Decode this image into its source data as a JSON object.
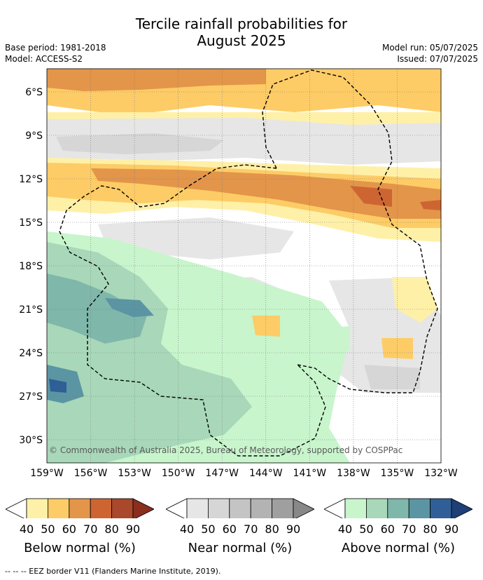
{
  "title_line1": "Tercile rainfall probabilities for",
  "title_line2": "August 2025",
  "base_period": "Base period: 1981-2018",
  "model": "Model: ACCESS-S2",
  "model_run": "Model run: 05/07/2025",
  "issued": "Issued: 07/07/2025",
  "copyright": "© Commonwealth of Australia 2025, Bureau of Meteorology, supported by COSPPac",
  "lat_labels": [
    "6°S",
    "9°S",
    "12°S",
    "15°S",
    "18°S",
    "21°S",
    "24°S",
    "27°S",
    "30°S"
  ],
  "lon_labels": [
    "159°W",
    "156°W",
    "153°W",
    "150°W",
    "147°W",
    "144°W",
    "141°W",
    "138°W",
    "135°W",
    "132°W"
  ],
  "legends": [
    {
      "name": "Below normal (%)",
      "ticks": [
        "40",
        "50",
        "60",
        "70",
        "80",
        "90"
      ],
      "colors": [
        "#fff0a8",
        "#fdcc66",
        "#e3954a",
        "#cd6532",
        "#a9482a",
        "#8b2e1e"
      ]
    },
    {
      "name": "Near normal (%)",
      "ticks": [
        "40",
        "50",
        "60",
        "70",
        "80",
        "90"
      ],
      "colors": [
        "#e6e6e6",
        "#d6d6d6",
        "#c4c4c4",
        "#b3b3b3",
        "#9f9f9f",
        "#888888"
      ]
    },
    {
      "name": "Above normal (%)",
      "ticks": [
        "40",
        "50",
        "60",
        "70",
        "80",
        "90"
      ],
      "colors": [
        "#c8f5cc",
        "#a8d8b9",
        "#7fb7aa",
        "#5b95a3",
        "#2f5f96",
        "#1e3f78"
      ]
    }
  ],
  "footer": "--  --  -- EEZ border V11 (Flanders Marine Institute, 2019)."
}
